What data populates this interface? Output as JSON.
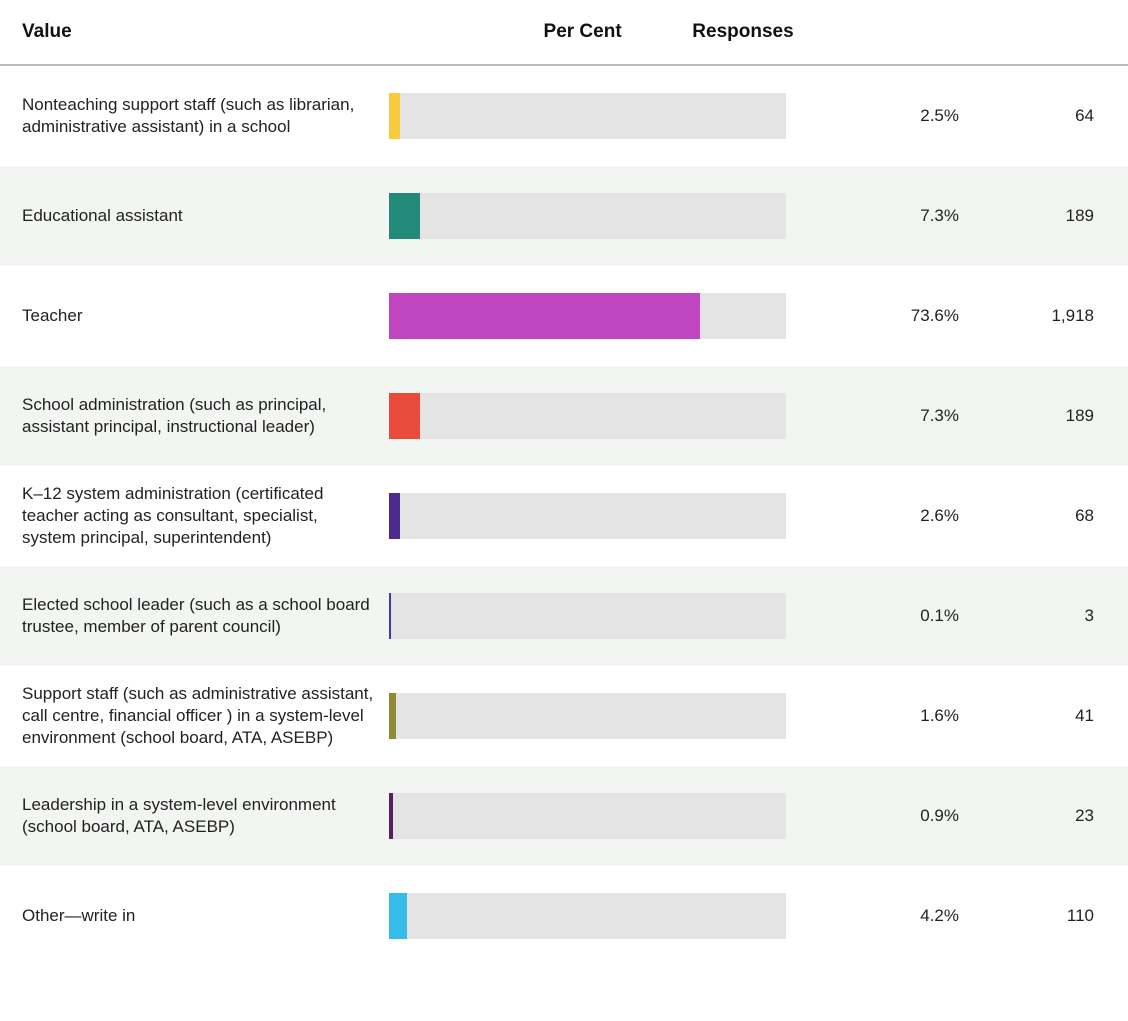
{
  "table": {
    "header": [
      "Value",
      "Per Cent",
      "Responses"
    ],
    "rows": [
      {
        "value": "Nonteaching support staff (such as librarian, administrative assistant) in a school",
        "percent": 2.5,
        "percent_label": "2.5%",
        "responses": "64",
        "color": "#f7cb3d"
      },
      {
        "value": "Educational assistant",
        "percent": 7.3,
        "percent_label": "7.3%",
        "responses": "189",
        "color": "#228a78"
      },
      {
        "value": "Teacher",
        "percent": 73.6,
        "percent_label": "73.6%",
        "responses": "1,918",
        "color": "#bf45c1"
      },
      {
        "value": "School administration (such as principal, assistant principal, instructional leader)",
        "percent": 7.3,
        "percent_label": "7.3%",
        "responses": "189",
        "color": "#e84a3b"
      },
      {
        "value": "K–12 system administration (certificated teacher acting as consultant, specialist, system principal, superintendent)",
        "percent": 2.6,
        "percent_label": "2.6%",
        "responses": "68",
        "color": "#4b2a8c"
      },
      {
        "value": "Elected school leader (such as a school board trustee, member of parent council)",
        "percent": 0.1,
        "percent_label": "0.1%",
        "responses": "3",
        "color": "#3b3bb0"
      },
      {
        "value": "Support staff (such as administrative assistant, call centre, financial officer ) in a system-level environment (school board, ATA, ASEBP)",
        "percent": 1.6,
        "percent_label": "1.6%",
        "responses": "41",
        "color": "#8e8a35"
      },
      {
        "value": "Leadership in a system-level environment (school board, ATA, ASEBP)",
        "percent": 0.9,
        "percent_label": "0.9%",
        "responses": "23",
        "color": "#5a1f5e"
      },
      {
        "value": "Other—write in",
        "percent": 4.2,
        "percent_label": "4.2%",
        "responses": "110",
        "color": "#34bde8"
      }
    ]
  }
}
